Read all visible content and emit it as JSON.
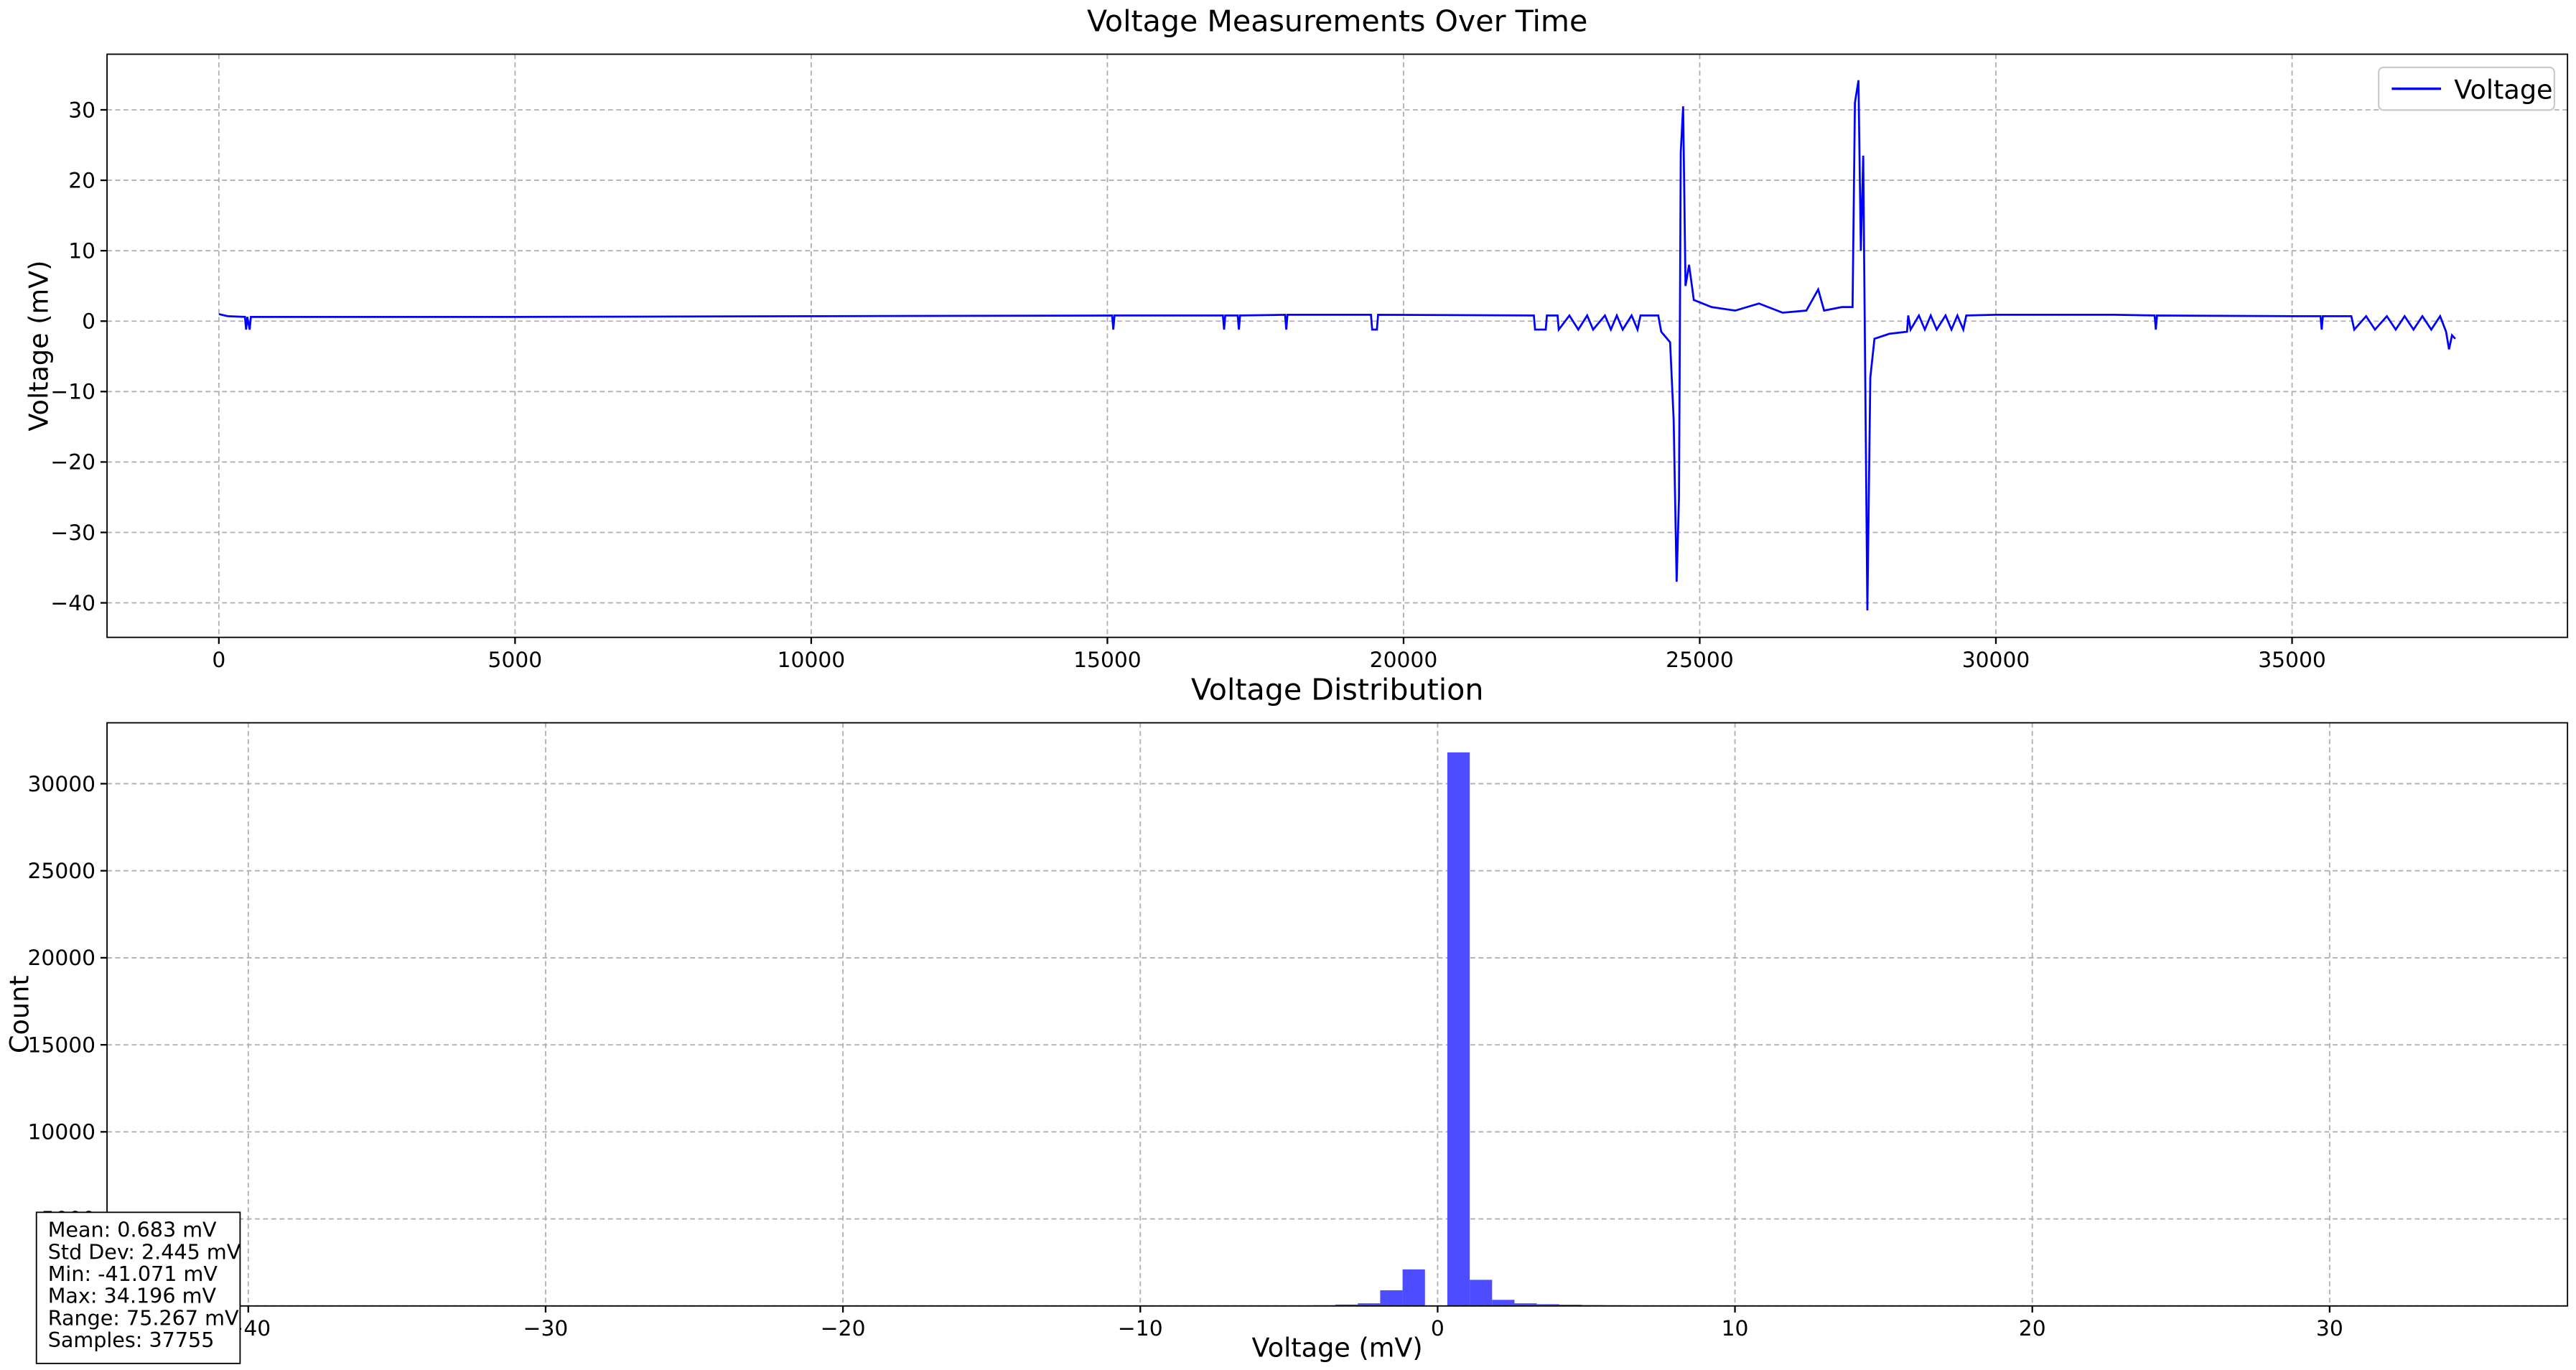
{
  "chart_data": [
    {
      "type": "line",
      "title": "Voltage Measurements Over Time",
      "ylabel": "Voltage (mV)",
      "xlim": [
        -1888,
        39650
      ],
      "ylim": [
        -44.9,
        37.9
      ],
      "xticks": [
        0,
        5000,
        10000,
        15000,
        20000,
        25000,
        30000,
        35000
      ],
      "yticks": [
        {
          "value": -40,
          "label": "−40"
        },
        {
          "value": -30,
          "label": "−30"
        },
        {
          "value": -20,
          "label": "−20"
        },
        {
          "value": -10,
          "label": "−10"
        },
        0,
        10,
        20,
        30
      ],
      "grid": true,
      "legend": "upper right",
      "x": [
        0,
        150,
        440,
        460,
        480,
        520,
        540,
        5000,
        10000,
        15080,
        15100,
        15120,
        16950,
        16970,
        16990,
        17200,
        17220,
        17240,
        18000,
        18020,
        18040,
        19450,
        19470,
        19550,
        19570,
        22200,
        22220,
        22400,
        22420,
        22600,
        22620,
        22800,
        22950,
        23100,
        23200,
        23400,
        23500,
        23600,
        23700,
        23850,
        23950,
        24000,
        24300,
        24350,
        24500,
        24560,
        24610,
        24650,
        24680,
        24720,
        24760,
        24820,
        24900,
        25200,
        25600,
        26000,
        26400,
        26800,
        27000,
        27100,
        27400,
        27580,
        27620,
        27680,
        27720,
        27760,
        27830,
        27880,
        27950,
        28200,
        28500,
        28520,
        28560,
        28700,
        28800,
        28900,
        29000,
        29150,
        29250,
        29350,
        29450,
        29500,
        30000,
        32000,
        32680,
        32700,
        32720,
        35000,
        35480,
        35500,
        35520,
        36000,
        36050,
        36250,
        36400,
        36600,
        36750,
        36900,
        37050,
        37200,
        37350,
        37500,
        37600,
        37650,
        37700,
        37755
      ],
      "series": [
        {
          "name": "Voltage",
          "color": "#0000ff",
          "values": [
            1.0,
            0.7,
            0.6,
            -1.2,
            0.6,
            -1.2,
            0.6,
            0.6,
            0.7,
            0.8,
            -1.2,
            0.8,
            0.8,
            -1.2,
            0.8,
            0.8,
            -1.2,
            0.8,
            0.9,
            -1.2,
            0.9,
            0.9,
            -1.2,
            -1.2,
            0.9,
            0.8,
            -1.2,
            -1.2,
            0.8,
            0.8,
            -1.2,
            0.8,
            -1.2,
            0.8,
            -1.2,
            0.8,
            -1.2,
            0.8,
            -1.2,
            0.8,
            -1.2,
            0.8,
            0.8,
            -1.5,
            -3,
            -14,
            -37,
            -25,
            24,
            30.5,
            5,
            8,
            3,
            2,
            1.5,
            2.5,
            1.2,
            1.5,
            4.5,
            1.5,
            2,
            2,
            31,
            34.196,
            10,
            23.5,
            -41.071,
            -8,
            -2.5,
            -1.8,
            -1.5,
            0.8,
            -1.2,
            0.8,
            -1.2,
            0.8,
            -1.2,
            0.8,
            -1.2,
            0.8,
            -1.2,
            0.8,
            0.9,
            0.9,
            0.8,
            -1.2,
            0.8,
            0.7,
            0.7,
            -1.2,
            0.7,
            0.7,
            -1.2,
            0.7,
            -1.2,
            0.7,
            -1.2,
            0.7,
            -1.2,
            0.7,
            -1.2,
            0.7,
            -1.5,
            -4,
            -2,
            -2.5
          ]
        }
      ]
    },
    {
      "type": "histogram",
      "title": "Voltage Distribution",
      "xlabel": "Voltage (mV)",
      "ylabel": "Count",
      "xlim": [
        -44.75,
        38.0
      ],
      "ylim": [
        0,
        33500
      ],
      "xticks": [
        {
          "value": -40,
          "label": "−40"
        },
        {
          "value": -30,
          "label": "−30"
        },
        {
          "value": -20,
          "label": "−20"
        },
        {
          "value": -10,
          "label": "−10"
        },
        0,
        10,
        20,
        30
      ],
      "yticks": [
        0,
        5000,
        10000,
        15000,
        20000,
        25000,
        30000
      ],
      "grid": true,
      "color": "#4d4dff",
      "bins": [
        -4.19,
        -3.437,
        -2.685,
        -1.932,
        -1.179,
        -0.426,
        0.326,
        1.079,
        1.832,
        2.585,
        3.337,
        4.089,
        4.842,
        5.595,
        6.348,
        7.1,
        7.853,
        8.606,
        9.358
      ],
      "values": [
        40,
        80,
        150,
        900,
        2100,
        0,
        31800,
        1500,
        350,
        150,
        100,
        70,
        50,
        40,
        30,
        20,
        15,
        10
      ],
      "stats_text": [
        "Mean: 0.683 mV",
        "Std Dev: 2.445 mV",
        "Min: -41.071 mV",
        "Max: 34.196 mV",
        "Range: 75.267 mV",
        "Samples: 37755"
      ]
    }
  ]
}
